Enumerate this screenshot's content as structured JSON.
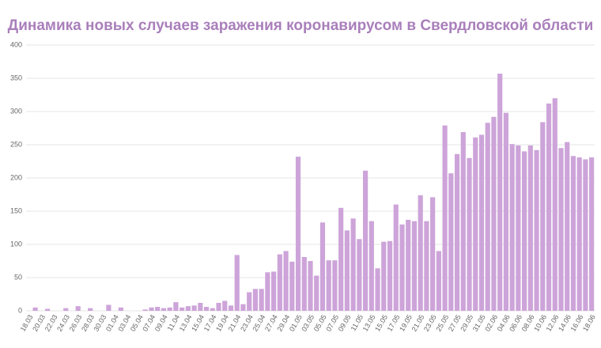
{
  "chart_data": {
    "type": "bar",
    "title": "Динамика новых случаев заражения коронавирусом в Свердловской области",
    "categories": [
      "18.03",
      null,
      "20.03",
      null,
      "22.03",
      null,
      "24.03",
      null,
      "26.03",
      null,
      "28.03",
      null,
      "30.03",
      null,
      "01.04",
      null,
      "03.04",
      null,
      "05.04",
      null,
      "07.04",
      null,
      "09.04",
      null,
      "11.04",
      null,
      "13.04",
      null,
      "15.04",
      null,
      "17.04",
      null,
      "19.04",
      null,
      "21.04",
      null,
      "23.04",
      null,
      "25.04",
      null,
      "27.04",
      null,
      "29.04",
      null,
      "01.05",
      null,
      "03.05",
      null,
      "05.05",
      null,
      "07.05",
      null,
      "09.05",
      null,
      "11.05",
      null,
      "13.05",
      null,
      "15.05",
      null,
      "17.05",
      null,
      "19.05",
      null,
      "21.05",
      null,
      "23.05",
      null,
      "25.05",
      null,
      "27.05",
      null,
      "29.05",
      null,
      "31.05",
      null,
      "02.06",
      null,
      "04.06",
      null,
      "06.06",
      null,
      "08.06",
      null,
      "10.06",
      null,
      "12.06",
      null,
      "14.06",
      null,
      "16.06",
      null,
      "18.06"
    ],
    "values": [
      0,
      5,
      0,
      3,
      0,
      0,
      4,
      0,
      7,
      0,
      4,
      0,
      0,
      9,
      0,
      5,
      0,
      0,
      0,
      2,
      5,
      6,
      4,
      5,
      13,
      5,
      7,
      8,
      12,
      6,
      4,
      12,
      15,
      8,
      84,
      10,
      28,
      33,
      33,
      58,
      59,
      85,
      90,
      74,
      232,
      81,
      75,
      53,
      133,
      76,
      76,
      155,
      121,
      139,
      108,
      211,
      135,
      64,
      104,
      105,
      160,
      130,
      137,
      135,
      174,
      135,
      171,
      90,
      279,
      207,
      236,
      269,
      230,
      261,
      265,
      283,
      292,
      357,
      298,
      251,
      249,
      240,
      249,
      242,
      284,
      312,
      320,
      245,
      254,
      233,
      231,
      228,
      231
    ],
    "color": "#cda4d9",
    "ylim": [
      0,
      400
    ],
    "yticks": [
      0,
      50,
      100,
      150,
      200,
      250,
      300,
      350,
      400
    ],
    "grid": true
  }
}
